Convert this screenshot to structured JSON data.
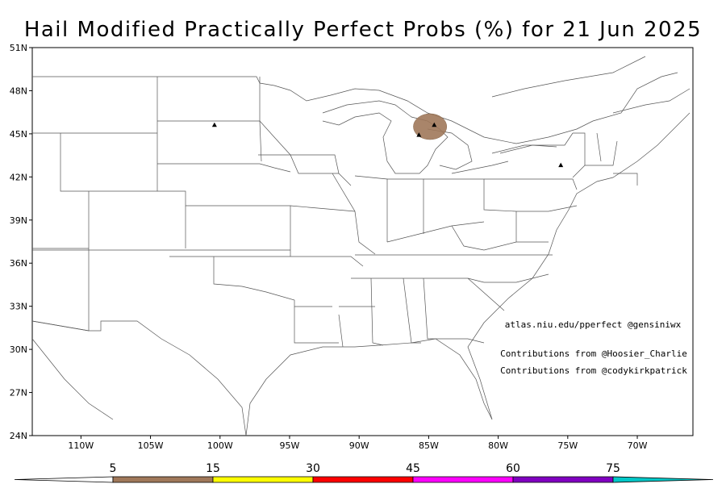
{
  "title": "Hail Modified Practically Perfect Probs (%) for 21 Jun 2025",
  "map": {
    "lat_ticks": [
      "51N",
      "48N",
      "45N",
      "42N",
      "39N",
      "36N",
      "33N",
      "30N",
      "27N",
      "24N"
    ],
    "lon_ticks": [
      "110W",
      "105W",
      "100W",
      "95W",
      "90W",
      "85W",
      "80W",
      "75W",
      "70W"
    ],
    "lat_range": [
      24,
      51
    ],
    "lon_range": [
      -113.5,
      -66
    ],
    "projection": "equirectangular",
    "borders": "US states, Canada, Mexico, coastlines"
  },
  "reports": [
    {
      "lat": 45.6,
      "lon": -100.4
    },
    {
      "lat": 44.9,
      "lon": -85.7
    },
    {
      "lat": 45.6,
      "lon": -84.6
    },
    {
      "lat": 42.8,
      "lon": -75.5
    }
  ],
  "contours": [
    {
      "category": "5-15",
      "color": "#a0785a",
      "center_lat": 45.5,
      "center_lon": -84.9,
      "radius_lat": 0.9,
      "radius_lon": 1.2
    }
  ],
  "credits": {
    "line1": "atlas.niu.edu/pperfect @gensiniwx",
    "line2": "Contributions from @Hoosier_Charlie",
    "line3": "Contributions from @codykirkpatrick"
  },
  "colorbar": {
    "labels": [
      "5",
      "15",
      "30",
      "45",
      "60",
      "75"
    ],
    "colors": [
      "#a0785a",
      "#ffff00",
      "#ff0000",
      "#ff00ff",
      "#8000c0",
      "#00c8c8"
    ]
  }
}
